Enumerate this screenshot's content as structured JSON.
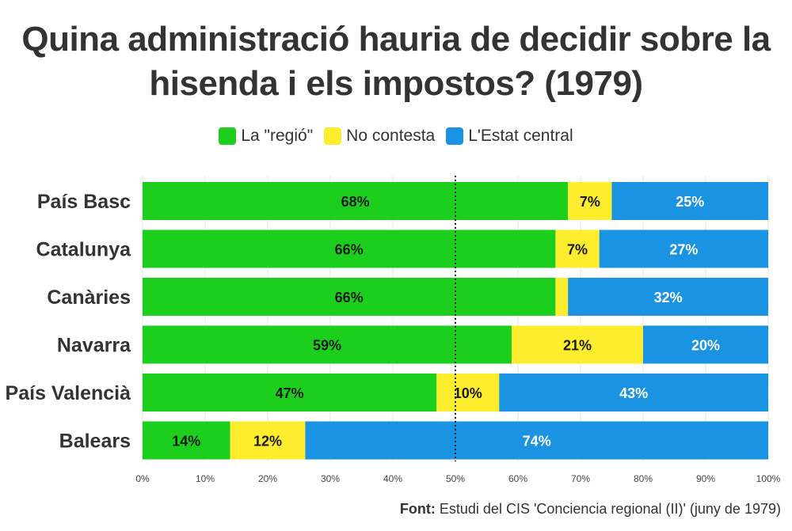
{
  "title_line1": "Quina administració hauria de decidir sobre la",
  "title_line2": "hisenda i els impostos? (1979)",
  "legend": [
    {
      "name": "La \"regió\"",
      "color": "#1ccf1c"
    },
    {
      "name": "No contesta",
      "color": "#fded2c"
    },
    {
      "name": "L'Estat central",
      "color": "#1a93e2"
    }
  ],
  "source": {
    "label": "Font:",
    "text": "Estudi del CIS 'Conciencia regional (II)' (juny de 1979)"
  },
  "chart_data": {
    "type": "bar",
    "orientation": "horizontal",
    "stacked": true,
    "categories": [
      "País Basc",
      "Catalunya",
      "Canàries",
      "Navarra",
      "País Valencià",
      "Balears"
    ],
    "series": [
      {
        "name": "La \"regió\"",
        "color": "#1ccf1c",
        "values": [
          68,
          66,
          66,
          59,
          47,
          14
        ],
        "labels": [
          "68%",
          "66%",
          "66%",
          "59%",
          "47%",
          "14%"
        ]
      },
      {
        "name": "No contesta",
        "color": "#fded2c",
        "values": [
          7,
          7,
          2,
          21,
          10,
          12
        ],
        "labels": [
          "7%",
          "7%",
          "",
          "21%",
          "10%",
          "12%"
        ]
      },
      {
        "name": "L'Estat central",
        "color": "#1a93e2",
        "values": [
          25,
          27,
          32,
          20,
          43,
          74
        ],
        "labels": [
          "25%",
          "27%",
          "32%",
          "20%",
          "43%",
          "74%"
        ]
      }
    ],
    "xlim": [
      0,
      100
    ],
    "xticks": [
      "0%",
      "10%",
      "20%",
      "30%",
      "40%",
      "50%",
      "60%",
      "70%",
      "80%",
      "90%",
      "100%"
    ],
    "reference_line": 50,
    "grid": true,
    "legend_position": "top"
  }
}
